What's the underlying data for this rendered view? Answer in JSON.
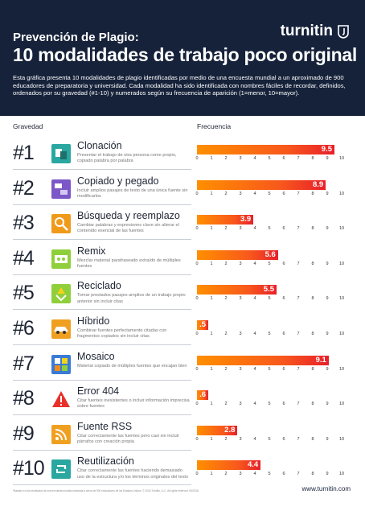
{
  "header": {
    "title_small": "Prevención de Plagio:",
    "title_big": "10 modalidades de trabajo poco original",
    "logo": "turnitin",
    "intro": "Esta gráfica presenta 10 modalidades de plagio identificadas por medio de una encuesta mundial a un aproximado de 900 educadores de preparatoria y universidad. Cada modalidad ha sido identificada con nombres fáciles de recordar, definidos, ordenados por su gravedad (#1-10) y numerados según su frecuencia de aparición (1=menor, 10=mayor)."
  },
  "columns": {
    "gravedad": "Gravedad",
    "frecuencia": "Frecuencia"
  },
  "chart_data": {
    "type": "bar",
    "xlim": [
      0,
      10
    ],
    "ticks": [
      "0",
      "1",
      "2",
      "3",
      "4",
      "5",
      "6",
      "7",
      "8",
      "9",
      "10"
    ],
    "colors": {
      "bar_start": "#ff8f00",
      "bar_end": "#e8202a"
    },
    "categories": [
      "Clonación",
      "Copiado y pegado",
      "Búsqueda y reemplazo",
      "Remix",
      "Reciclado",
      "Híbrido",
      "Mosaico",
      "Error 404",
      "Fuente RSS",
      "Reutilización"
    ],
    "values": [
      9.5,
      8.9,
      3.9,
      5.6,
      5.5,
      0.5,
      9.1,
      0.6,
      2.8,
      4.4
    ],
    "value_labels": [
      "9.5",
      "8.9",
      "3.9",
      "5.6",
      "5.5",
      ".5",
      "9.1",
      ".6",
      "2.8",
      "4.4"
    ]
  },
  "items": [
    {
      "rank": "#1",
      "name": "Clonación",
      "desc": "Presentar el trabajo de otra persona como propio, copiado palabra por palabra",
      "icon": "clone-icon",
      "icon_color": "#2aa7a0"
    },
    {
      "rank": "#2",
      "name": "Copiado y pegado",
      "desc": "Incluir amplios pasajes de texto de una única fuente sin modificarlos",
      "icon": "copy-paste-icon",
      "icon_color": "#7b57c8"
    },
    {
      "rank": "#3",
      "name": "Búsqueda y reemplazo",
      "desc": "Cambiar palabras y expresiones clave sin alterar el contenido esencial de las fuentes",
      "icon": "search-replace-icon",
      "icon_color": "#f09a1a"
    },
    {
      "rank": "#4",
      "name": "Remix",
      "desc": "Mezclar material parafraseado extraído de múltiples fuentes",
      "icon": "remix-icon",
      "icon_color": "#8fcf3c"
    },
    {
      "rank": "#5",
      "name": "Reciclado",
      "desc": "Tomar prestados pasajes amplios de un trabajo propio anterior sin incluir citas",
      "icon": "recycle-icon",
      "icon_color": "#8fcf3c"
    },
    {
      "rank": "#6",
      "name": "Híbrido",
      "desc": "Combinar fuentes perfectamente citadas con fragmentos copiados sin incluir citas",
      "icon": "hybrid-car-icon",
      "icon_color": "#f0a020"
    },
    {
      "rank": "#7",
      "name": "Mosaico",
      "desc": "Material copiado de múltiples fuentes que encajan bien",
      "icon": "mosaic-icon",
      "icon_color": "#3a7bd5"
    },
    {
      "rank": "#8",
      "name": "Error 404",
      "desc": "Citar fuentes inexistentes o incluir información imprecisa sobre fuentes",
      "icon": "warning-icon",
      "icon_color": "#e8302a"
    },
    {
      "rank": "#9",
      "name": "Fuente RSS",
      "desc": "Citar correctamente las fuentes pero casi sin incluir párrafos con creación propia",
      "icon": "rss-icon",
      "icon_color": "#f0a020"
    },
    {
      "rank": "#10",
      "name": "Reutilización",
      "desc": "Citar correctamente las fuentes haciendo demasiado uso de la estructura y/o los términos originales del texto",
      "icon": "reuse-icon",
      "icon_color": "#2aa7a0"
    }
  ],
  "footer": {
    "note": "*Basado en los resultados de una encuesta mundial realizada a cerca de 900 educadores de los Estados Unidos. © 2016 Turnitin, LLC. All rights reserved. 06/2016",
    "url": "www.turnitin.com"
  }
}
